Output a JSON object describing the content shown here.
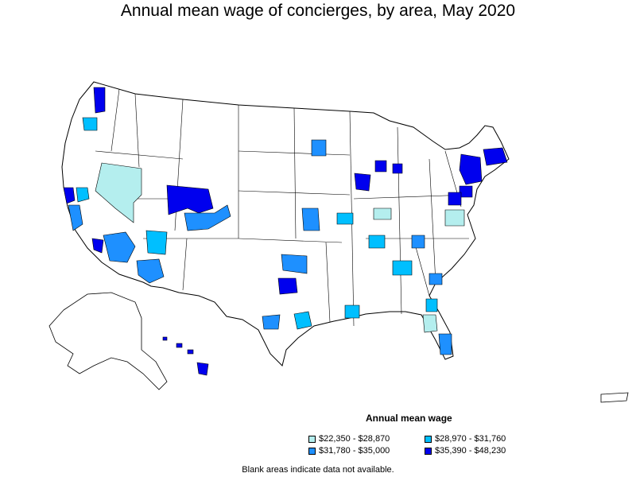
{
  "title": "Annual mean wage of concierges, by area, May 2020",
  "legend": {
    "title": "Annual mean wage",
    "items": [
      {
        "label": "$22,350 - $28,870",
        "color": "#b4eeee"
      },
      {
        "label": "$28,970 - $31,760",
        "color": "#00bfff"
      },
      {
        "label": "$31,780 - $35,000",
        "color": "#1e90ff"
      },
      {
        "label": "$35,390 - $48,230",
        "color": "#0000ee"
      }
    ]
  },
  "note": "Blank areas indicate data not available.",
  "colors": {
    "no_data": "#ffffff",
    "border": "#000000"
  }
}
